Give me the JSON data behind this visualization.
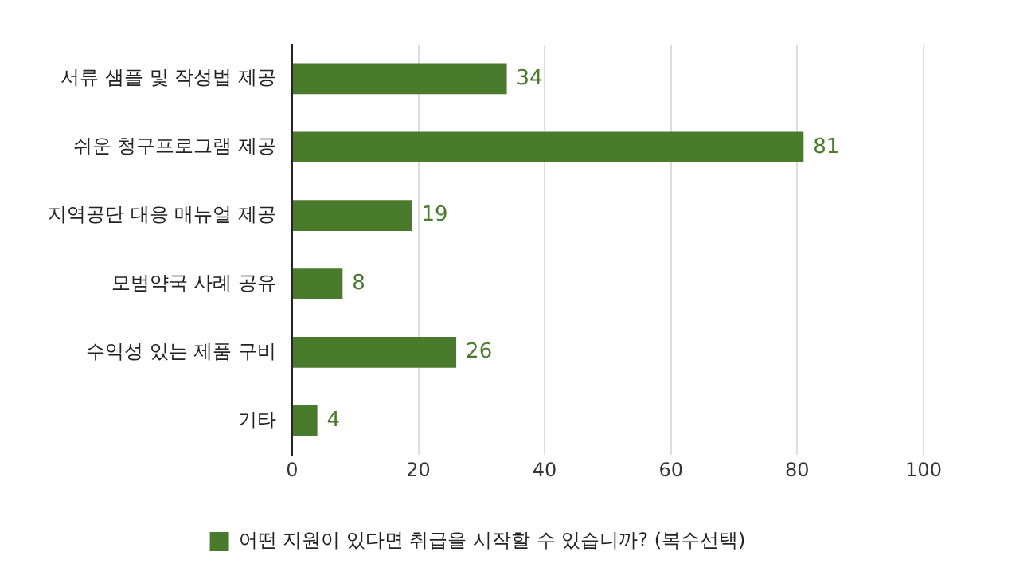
{
  "chart_data": {
    "type": "bar",
    "orientation": "horizontal",
    "categories": [
      "서류 샘플 및 작성법 제공",
      "쉬운 청구프로그램 제공",
      "지역공단 대응 매뉴얼 제공",
      "모범약국 사례 공유",
      "수익성 있는 제품 구비",
      "기타"
    ],
    "series": [
      {
        "name": "어떤 지원이 있다면 취급을 시작할 수 있습니까? (복수선택)",
        "color": "#4a7a2c",
        "values": [
          34,
          81,
          19,
          8,
          26,
          4
        ]
      }
    ],
    "xlim": [
      0,
      100
    ],
    "xticks": [
      0,
      20,
      40,
      60,
      80,
      100
    ],
    "grid": "x",
    "legend": "bottom",
    "data_labels": true
  }
}
